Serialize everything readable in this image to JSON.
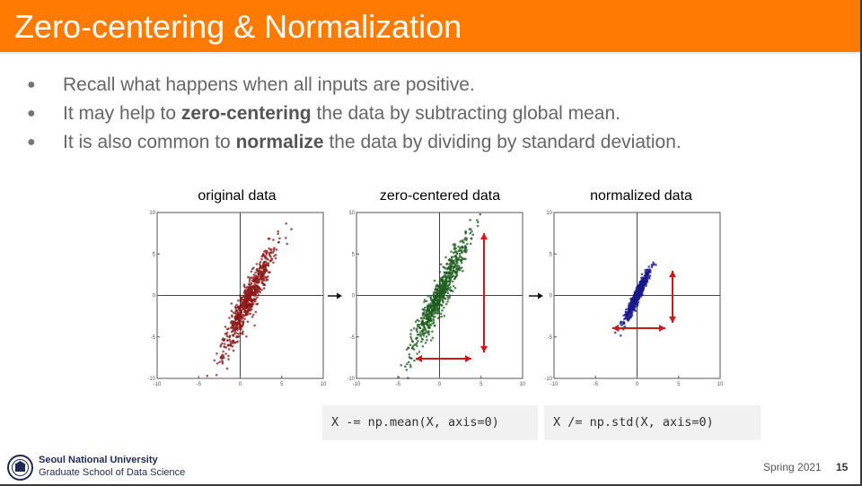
{
  "slide": {
    "title": "Zero-centering & Normalization",
    "bullets": [
      {
        "before": "Recall what happens when all inputs are positive.",
        "bold": "",
        "after": ""
      },
      {
        "before": "It may help to ",
        "bold": "zero-centering",
        "after": " the data by subtracting global mean."
      },
      {
        "before": "It is also common to ",
        "bold": "normalize",
        "after": " the data by dividing by standard deviation."
      }
    ],
    "bullet_glyph": "●"
  },
  "figure": {
    "panels": [
      {
        "title": "original data",
        "color": "#8b1a1a"
      },
      {
        "title": "zero-centered data",
        "color": "#1e5c1e"
      },
      {
        "title": "normalized data",
        "color": "#1a1a8b"
      }
    ],
    "ticks": {
      "x": [
        "-10",
        "-5",
        "0",
        "5",
        "10"
      ],
      "y": [
        "10",
        "5",
        "0",
        "-5",
        "-10"
      ]
    },
    "arrow_color": "#d01818"
  },
  "code": {
    "mean_line": "X -= np.mean(X, axis=0)",
    "std_line": "X /= np.std(X, axis=0)"
  },
  "footer": {
    "university": "Seoul National University",
    "school": "Graduate School of Data Science",
    "term": "Spring 2021",
    "page": "15",
    "logo_icon": "university-seal-icon",
    "logo_color": "#1f2a55"
  }
}
